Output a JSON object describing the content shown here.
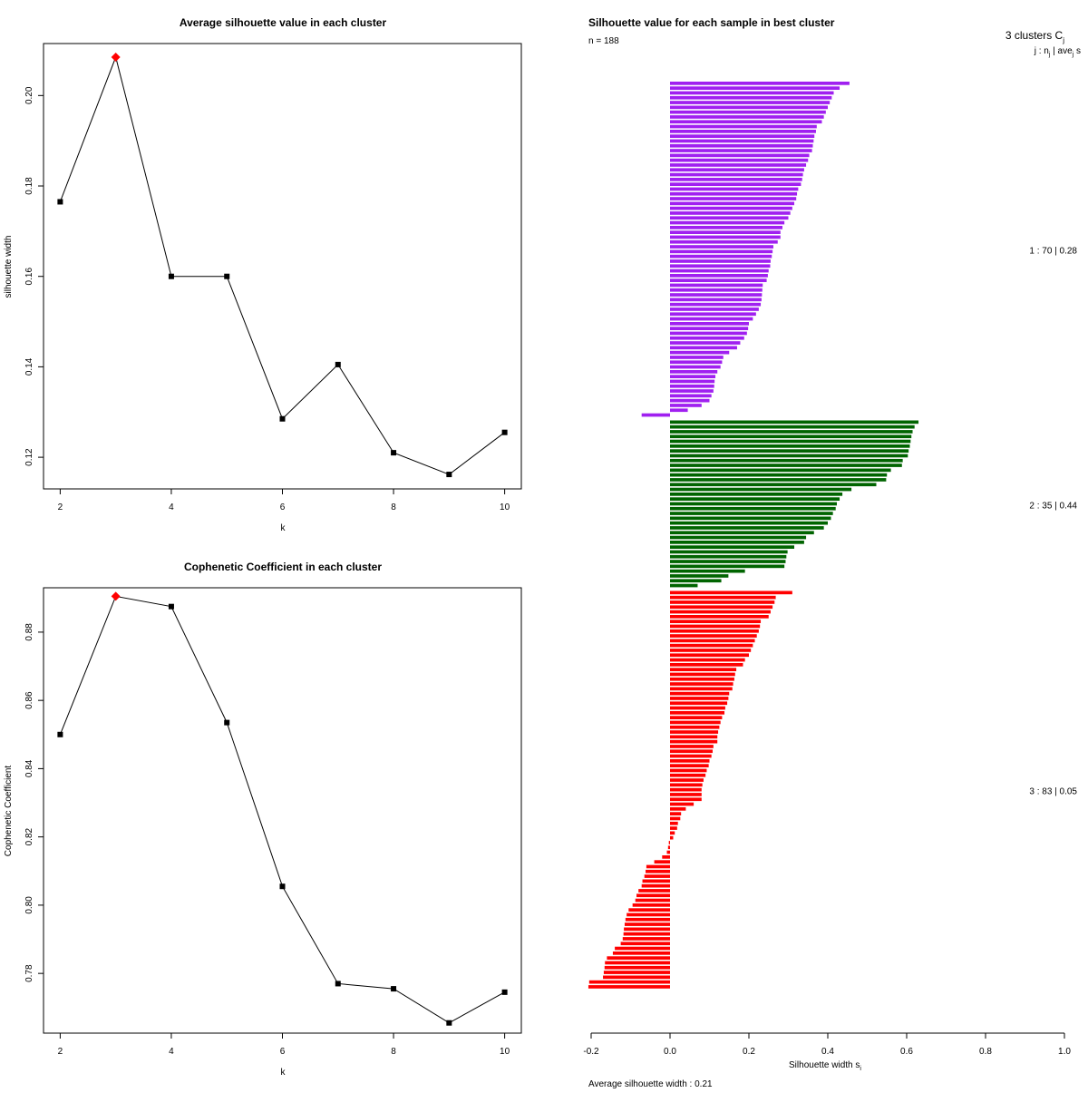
{
  "chart_data": [
    {
      "type": "line",
      "title": "Average silhouette value in each cluster",
      "xlabel": "k",
      "ylabel": "silhouette width",
      "x": [
        2,
        3,
        4,
        5,
        6,
        7,
        8,
        9,
        10
      ],
      "y": [
        0.1765,
        0.2085,
        0.16,
        0.16,
        0.1285,
        0.1405,
        0.121,
        0.1162,
        0.1255
      ],
      "highlight_index": 1,
      "highlight_color": "#ff0000",
      "x_ticks": [
        "2",
        "4",
        "6",
        "8",
        "10"
      ],
      "y_ticks": [
        "0.12",
        "0.14",
        "0.16",
        "0.18",
        "0.20"
      ],
      "xlim": [
        1.7,
        10.3
      ],
      "ylim": [
        0.113,
        0.2115
      ]
    },
    {
      "type": "line",
      "title": "Cophenetic Coefficient in each cluster",
      "xlabel": "k",
      "ylabel": "Cophenetic Coefficient",
      "x": [
        2,
        3,
        4,
        5,
        6,
        7,
        8,
        9,
        10
      ],
      "y": [
        0.85,
        0.8905,
        0.8875,
        0.8535,
        0.8055,
        0.777,
        0.7755,
        0.7655,
        0.7745
      ],
      "highlight_index": 1,
      "highlight_color": "#ff0000",
      "x_ticks": [
        "2",
        "4",
        "6",
        "8",
        "10"
      ],
      "y_ticks": [
        "0.78",
        "0.80",
        "0.82",
        "0.84",
        "0.86",
        "0.88"
      ],
      "xlim": [
        1.7,
        10.3
      ],
      "ylim": [
        0.7625,
        0.893
      ]
    },
    {
      "type": "bar",
      "orientation": "horizontal",
      "title": "Silhouette value for each sample in best cluster",
      "n_label": "n = 188",
      "header": "3  clusters  C",
      "header_sub": "j",
      "legend_header": "j :  n",
      "legend_header_mid": " | ave",
      "legend_header_end": " s",
      "xlabel": "Silhouette width s",
      "xlabel_sub": "i",
      "x_ticks": [
        "-0.2",
        "0.0",
        "0.2",
        "0.4",
        "0.6",
        "0.8",
        "1.0"
      ],
      "xlim": [
        -0.2,
        1.0
      ],
      "footer": "Average silhouette width :  0.21",
      "series": [
        {
          "name": "1 :  70  |  0.28",
          "color": "#a020f0",
          "values": [
            0.455,
            0.43,
            0.415,
            0.41,
            0.405,
            0.4,
            0.395,
            0.39,
            0.385,
            0.372,
            0.37,
            0.366,
            0.364,
            0.362,
            0.36,
            0.353,
            0.35,
            0.345,
            0.34,
            0.337,
            0.335,
            0.332,
            0.325,
            0.322,
            0.32,
            0.315,
            0.31,
            0.305,
            0.3,
            0.29,
            0.285,
            0.28,
            0.28,
            0.273,
            0.262,
            0.26,
            0.258,
            0.255,
            0.254,
            0.25,
            0.248,
            0.245,
            0.235,
            0.234,
            0.233,
            0.232,
            0.23,
            0.225,
            0.218,
            0.21,
            0.2,
            0.198,
            0.195,
            0.188,
            0.178,
            0.17,
            0.15,
            0.135,
            0.132,
            0.128,
            0.12,
            0.115,
            0.113,
            0.112,
            0.11,
            0.105,
            0.1,
            0.08,
            0.045,
            -0.072
          ]
        },
        {
          "name": "2 :  35  |  0.44",
          "color": "#006400",
          "values": [
            0.63,
            0.62,
            0.615,
            0.612,
            0.61,
            0.608,
            0.605,
            0.603,
            0.59,
            0.588,
            0.56,
            0.55,
            0.548,
            0.523,
            0.46,
            0.437,
            0.43,
            0.423,
            0.42,
            0.413,
            0.408,
            0.4,
            0.39,
            0.365,
            0.345,
            0.34,
            0.315,
            0.298,
            0.295,
            0.293,
            0.29,
            0.19,
            0.148,
            0.13,
            0.07
          ]
        },
        {
          "name": "3 :  83  |  0.05",
          "color": "#ff0000",
          "values": [
            0.31,
            0.268,
            0.265,
            0.26,
            0.255,
            0.25,
            0.23,
            0.228,
            0.225,
            0.22,
            0.215,
            0.21,
            0.205,
            0.2,
            0.19,
            0.185,
            0.168,
            0.165,
            0.163,
            0.16,
            0.158,
            0.15,
            0.148,
            0.145,
            0.14,
            0.138,
            0.132,
            0.128,
            0.125,
            0.122,
            0.12,
            0.12,
            0.11,
            0.108,
            0.105,
            0.1,
            0.098,
            0.093,
            0.09,
            0.085,
            0.082,
            0.08,
            0.08,
            0.08,
            0.06,
            0.04,
            0.028,
            0.026,
            0.02,
            0.018,
            0.012,
            0.008,
            -0.003,
            -0.005,
            -0.008,
            -0.02,
            -0.04,
            -0.06,
            -0.062,
            -0.065,
            -0.07,
            -0.072,
            -0.08,
            -0.085,
            -0.088,
            -0.095,
            -0.105,
            -0.11,
            -0.113,
            -0.115,
            -0.117,
            -0.118,
            -0.12,
            -0.125,
            -0.14,
            -0.145,
            -0.16,
            -0.165,
            -0.166,
            -0.168,
            -0.17,
            -0.205,
            -0.207
          ]
        }
      ]
    }
  ]
}
